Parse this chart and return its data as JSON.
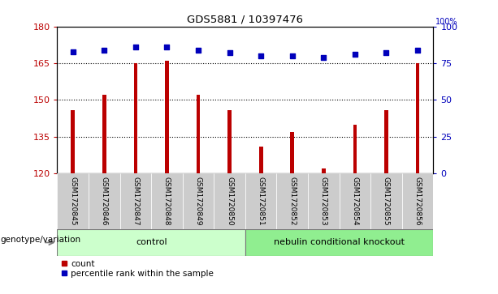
{
  "title": "GDS5881 / 10397476",
  "samples": [
    "GSM1720845",
    "GSM1720846",
    "GSM1720847",
    "GSM1720848",
    "GSM1720849",
    "GSM1720850",
    "GSM1720851",
    "GSM1720852",
    "GSM1720853",
    "GSM1720854",
    "GSM1720855",
    "GSM1720856"
  ],
  "counts": [
    146,
    152,
    165,
    166,
    152,
    146,
    131,
    137,
    122,
    140,
    146,
    165
  ],
  "percentile_ranks": [
    83,
    84,
    86,
    86,
    84,
    82,
    80,
    80,
    79,
    81,
    82,
    84
  ],
  "ylim_left": [
    120,
    180
  ],
  "ylim_right": [
    0,
    100
  ],
  "yticks_left": [
    120,
    135,
    150,
    165,
    180
  ],
  "yticks_right": [
    0,
    25,
    50,
    75,
    100
  ],
  "bar_color": "#bb0000",
  "dot_color": "#0000bb",
  "grid_lines": [
    135,
    150,
    165
  ],
  "group_label_prefix": "genotype/variation",
  "group_colors": [
    "#ccffcc",
    "#90ee90"
  ],
  "group_labels": [
    "control",
    "nebulin conditional knockout"
  ],
  "group_ranges": [
    [
      0,
      6
    ],
    [
      6,
      12
    ]
  ],
  "tick_bg_color": "#cccccc",
  "plot_bg_color": "#ffffff",
  "border_color": "#000000",
  "right_axis_label": "100%",
  "bar_width": 0.12
}
